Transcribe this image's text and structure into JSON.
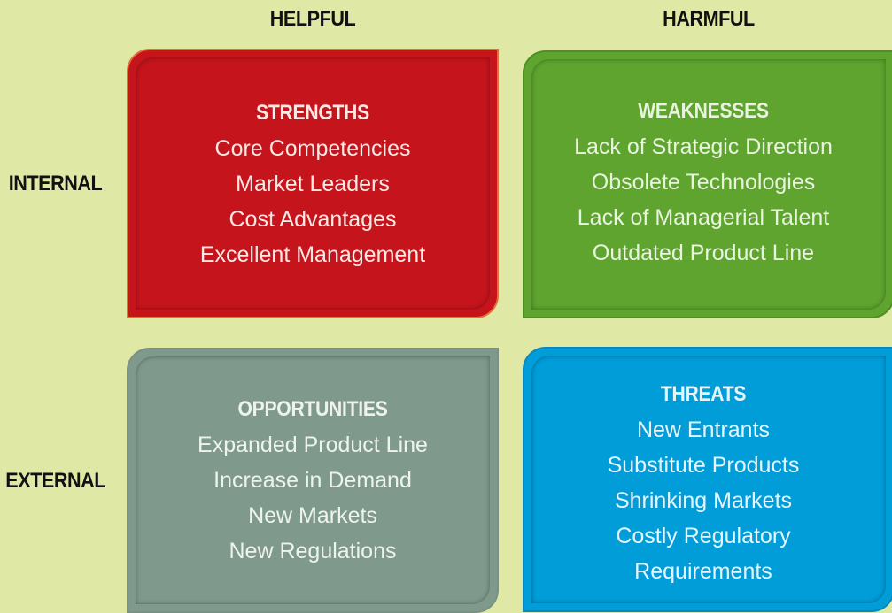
{
  "columns": {
    "helpful": "HELPFUL",
    "harmful": "HARMFUL"
  },
  "rows": {
    "internal": "INTERNAL",
    "external": "EXTERNAL"
  },
  "quadrants": {
    "strengths": {
      "title": "STRENGTHS",
      "color": "#c5141c",
      "items": [
        "Core Competencies",
        "Market Leaders",
        "Cost Advantages",
        "Excellent Management"
      ]
    },
    "weaknesses": {
      "title": "WEAKNESSES",
      "color": "#5ea42f",
      "items": [
        "Lack of Strategic Direction",
        "Obsolete Technologies",
        "Lack of Managerial Talent",
        "Outdated Product Line"
      ]
    },
    "opportunities": {
      "title": "OPPORTUNITIES",
      "color": "#7f9a8c",
      "items": [
        "Expanded Product Line",
        "Increase in Demand",
        "New Markets",
        "New Regulations"
      ]
    },
    "threats": {
      "title": "THREATS",
      "color": "#009dd9",
      "items": [
        "New Entrants",
        "Substitute Products",
        "Shrinking Markets",
        "Costly Regulatory",
        "Requirements"
      ]
    }
  }
}
